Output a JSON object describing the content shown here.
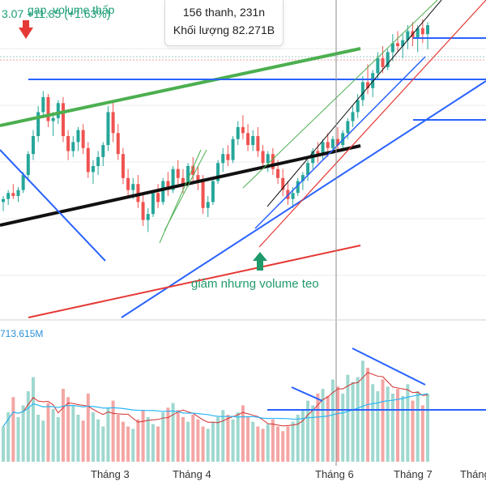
{
  "tooltip": {
    "line1": "156 thanh, 231n",
    "line2": "Khối lượng 82.271B"
  },
  "header_text": "...3.07 +11.85 (+1.63%)  gap, volume thấp",
  "header_fragment": "gap, volume thấp",
  "header_value": "3.07 +11.85 (+1.63%)",
  "annotation_low": "giảm nhưng volume teo",
  "volume_label": "713.615M",
  "colors": {
    "up": "#26a69a",
    "down": "#ef5350",
    "blue": "#2962ff",
    "green": "#4caf50",
    "black": "#111111",
    "red": "#e53935",
    "ma": "#d32f2f",
    "vma": "#29b6f6"
  },
  "chart_data": {
    "type": "candlestick",
    "x_ticks": [
      "Tháng 3",
      "Tháng 4",
      "Tháng 6",
      "Tháng 7",
      "Tháng"
    ],
    "price_range": [
      0,
      100
    ],
    "candles": [
      [
        38,
        40,
        35,
        39
      ],
      [
        39,
        42,
        37,
        41
      ],
      [
        41,
        44,
        39,
        40
      ],
      [
        40,
        43,
        38,
        42
      ],
      [
        42,
        48,
        41,
        47
      ],
      [
        47,
        55,
        45,
        54
      ],
      [
        54,
        62,
        52,
        60
      ],
      [
        60,
        70,
        58,
        68
      ],
      [
        68,
        75,
        66,
        73
      ],
      [
        73,
        74,
        63,
        65
      ],
      [
        65,
        68,
        60,
        66
      ],
      [
        66,
        72,
        64,
        71
      ],
      [
        71,
        73,
        58,
        60
      ],
      [
        60,
        62,
        52,
        55
      ],
      [
        55,
        60,
        53,
        58
      ],
      [
        58,
        63,
        55,
        62
      ],
      [
        62,
        64,
        54,
        56
      ],
      [
        56,
        58,
        46,
        48
      ],
      [
        48,
        52,
        44,
        50
      ],
      [
        50,
        55,
        47,
        53
      ],
      [
        53,
        58,
        50,
        57
      ],
      [
        57,
        70,
        55,
        68
      ],
      [
        68,
        72,
        58,
        61
      ],
      [
        61,
        64,
        52,
        54
      ],
      [
        54,
        56,
        44,
        46
      ],
      [
        46,
        49,
        40,
        42
      ],
      [
        42,
        46,
        39,
        44
      ],
      [
        44,
        47,
        36,
        38
      ],
      [
        38,
        41,
        30,
        32
      ],
      [
        32,
        36,
        28,
        34
      ],
      [
        34,
        42,
        33,
        41
      ],
      [
        41,
        44,
        36,
        38
      ],
      [
        38,
        46,
        37,
        45
      ],
      [
        45,
        48,
        40,
        42
      ],
      [
        42,
        50,
        41,
        49
      ],
      [
        49,
        52,
        44,
        46
      ],
      [
        46,
        49,
        41,
        44
      ],
      [
        44,
        51,
        43,
        50
      ],
      [
        50,
        53,
        45,
        47
      ],
      [
        47,
        50,
        42,
        45
      ],
      [
        45,
        47,
        34,
        36
      ],
      [
        36,
        40,
        33,
        38
      ],
      [
        38,
        46,
        37,
        45
      ],
      [
        45,
        52,
        44,
        51
      ],
      [
        51,
        56,
        48,
        54
      ],
      [
        54,
        57,
        50,
        52
      ],
      [
        52,
        60,
        51,
        59
      ],
      [
        59,
        65,
        57,
        63
      ],
      [
        63,
        67,
        59,
        61
      ],
      [
        61,
        64,
        55,
        57
      ],
      [
        57,
        62,
        55,
        60
      ],
      [
        60,
        63,
        53,
        55
      ],
      [
        55,
        57,
        49,
        51
      ],
      [
        51,
        55,
        48,
        54
      ],
      [
        54,
        56,
        47,
        49
      ],
      [
        49,
        52,
        44,
        46
      ],
      [
        46,
        49,
        40,
        42
      ],
      [
        42,
        45,
        37,
        39
      ],
      [
        39,
        43,
        36,
        41
      ],
      [
        41,
        46,
        40,
        45
      ],
      [
        45,
        48,
        42,
        47
      ],
      [
        47,
        52,
        45,
        51
      ],
      [
        51,
        56,
        49,
        55
      ],
      [
        55,
        58,
        51,
        54
      ],
      [
        54,
        59,
        52,
        58
      ],
      [
        58,
        61,
        53,
        56
      ],
      [
        56,
        60,
        54,
        59
      ],
      [
        59,
        63,
        55,
        57
      ],
      [
        57,
        62,
        56,
        61
      ],
      [
        61,
        66,
        59,
        65
      ],
      [
        65,
        70,
        63,
        68
      ],
      [
        68,
        74,
        66,
        72
      ],
      [
        72,
        80,
        70,
        78
      ],
      [
        78,
        84,
        74,
        76
      ],
      [
        76,
        82,
        73,
        81
      ],
      [
        81,
        88,
        79,
        86
      ],
      [
        86,
        90,
        81,
        83
      ],
      [
        83,
        89,
        82,
        88
      ],
      [
        88,
        94,
        85,
        91
      ],
      [
        91,
        95,
        88,
        90
      ],
      [
        90,
        94,
        86,
        92
      ],
      [
        92,
        97,
        89,
        95
      ],
      [
        95,
        98,
        90,
        93
      ],
      [
        93,
        97,
        88,
        96
      ],
      [
        96,
        99,
        91,
        94
      ],
      [
        94,
        98,
        89,
        97
      ]
    ],
    "volume": [
      30,
      42,
      55,
      38,
      48,
      60,
      72,
      40,
      35,
      50,
      45,
      38,
      62,
      55,
      48,
      40,
      35,
      58,
      42,
      36,
      30,
      46,
      52,
      40,
      34,
      30,
      28,
      36,
      44,
      38,
      32,
      30,
      42,
      46,
      50,
      44,
      38,
      34,
      40,
      36,
      30,
      28,
      34,
      38,
      44,
      40,
      36,
      42,
      48,
      38,
      34,
      30,
      28,
      32,
      36,
      30,
      26,
      30,
      34,
      40,
      44,
      52,
      48,
      58,
      62,
      56,
      70,
      64,
      58,
      74,
      68,
      72,
      86,
      80,
      66,
      60,
      70,
      64,
      58,
      62,
      56,
      66,
      52,
      60,
      48,
      58
    ],
    "volume_range": [
      0,
      100
    ]
  }
}
